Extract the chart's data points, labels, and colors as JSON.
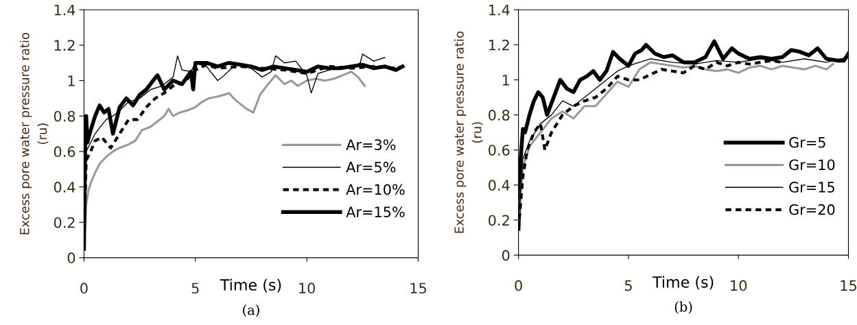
{
  "chart_data": [
    {
      "type": "line",
      "xlabel": "Time (s)",
      "ylabel": "Excess pore water pressure ratio\n(ru)",
      "annotations": [
        "(a)"
      ],
      "xlim": [
        0,
        15
      ],
      "xticks": [
        0,
        5,
        10,
        15
      ],
      "ylim": [
        0,
        1.4
      ],
      "yticks": [
        0,
        0.2,
        0.4,
        0.6,
        0.8,
        1,
        1.2,
        1.4
      ],
      "grid": false,
      "legend": "bottom right",
      "marker": "none",
      "series": [
        {
          "name": "Ar=3%",
          "color": "#999999",
          "line_style": "solid",
          "x": [
            0,
            0.05,
            0.1,
            0.2,
            0.3,
            0.5,
            0.7,
            1,
            1.3,
            1.6,
            2,
            2.3,
            2.6,
            3,
            3.3,
            3.6,
            3.8,
            4.0,
            4.3,
            4.6,
            5,
            5.3,
            5.6,
            6,
            6.3,
            6.5,
            6.8,
            7,
            7.3,
            7.6,
            7.9,
            8.2,
            8.6,
            9,
            9.3,
            9.6,
            10,
            10.4,
            10.8,
            11.2,
            11.6,
            12,
            12.3,
            12.6
          ],
          "values": [
            0.05,
            0.2,
            0.3,
            0.38,
            0.42,
            0.48,
            0.53,
            0.57,
            0.6,
            0.62,
            0.64,
            0.66,
            0.72,
            0.74,
            0.77,
            0.8,
            0.84,
            0.8,
            0.82,
            0.83,
            0.85,
            0.88,
            0.9,
            0.91,
            0.92,
            0.93,
            0.89,
            0.87,
            0.84,
            0.82,
            0.92,
            0.97,
            1.03,
            0.98,
            1.0,
            0.97,
            1.0,
            1.01,
            1.0,
            1.01,
            1.03,
            1.05,
            1.02,
            0.97
          ]
        },
        {
          "name": "Ar=5%",
          "color": "#000000",
          "line_style": "solid",
          "x": [
            0,
            0.05,
            0.1,
            0.3,
            0.5,
            0.8,
            1,
            1.3,
            1.6,
            2,
            2.5,
            3,
            3.5,
            4,
            4.2,
            4.4,
            4.8,
            5,
            5.5,
            6,
            6.3,
            6.8,
            7.5,
            8,
            8.4,
            8.6,
            9,
            9.5,
            10,
            10.2,
            10.5,
            11,
            11.5,
            12,
            12.4,
            12.5,
            13,
            13.5
          ],
          "values": [
            0.1,
            0.5,
            0.6,
            0.65,
            0.7,
            0.75,
            0.78,
            0.8,
            0.83,
            0.88,
            0.9,
            0.95,
            0.97,
            1.02,
            1.14,
            1.06,
            1.05,
            1.1,
            1.08,
            1.0,
            1.03,
            1.09,
            1.07,
            1.02,
            1.05,
            1.14,
            1.1,
            1.11,
            1.03,
            0.93,
            1.04,
            1.06,
            1.08,
            1.07,
            1.1,
            1.15,
            1.11,
            1.13
          ]
        },
        {
          "name": "Ar=10%",
          "color": "#000000",
          "line_style": "dashed",
          "x": [
            0,
            0.1,
            0.3,
            0.5,
            0.8,
            1.2,
            1.6,
            2,
            2.4,
            2.8,
            3.2,
            3.6,
            4,
            4.5,
            5,
            5.5,
            6,
            7,
            8,
            9,
            10,
            11,
            12,
            13,
            14,
            14.3
          ],
          "values": [
            0.1,
            0.55,
            0.6,
            0.66,
            0.68,
            0.62,
            0.7,
            0.78,
            0.78,
            0.85,
            0.9,
            0.93,
            0.97,
            0.99,
            1.06,
            1.09,
            1.07,
            1.08,
            1.07,
            1.06,
            1.04,
            1.08,
            1.07,
            1.08,
            1.07,
            1.08
          ]
        },
        {
          "name": "Ar=15%",
          "color": "#000000",
          "line_style": "solid",
          "x": [
            0,
            0.05,
            0.1,
            0.15,
            0.3,
            0.5,
            0.7,
            0.9,
            1.1,
            1.3,
            1.6,
            1.9,
            2.2,
            2.5,
            2.8,
            3.1,
            3.3,
            3.6,
            4,
            4.4,
            4.8,
            4.9,
            5,
            5.5,
            6,
            6.5,
            7,
            7.5,
            8,
            8.5,
            9,
            9.5,
            10,
            10.5,
            11,
            11.5,
            12,
            12.5,
            13,
            13.5,
            14,
            14.3
          ],
          "values": [
            0.05,
            0.6,
            0.8,
            0.65,
            0.72,
            0.8,
            0.86,
            0.82,
            0.84,
            0.7,
            0.85,
            0.9,
            0.86,
            0.92,
            0.95,
            1.0,
            1.03,
            0.95,
            1.0,
            0.98,
            1.05,
            0.95,
            1.1,
            1.1,
            1.08,
            1.1,
            1.09,
            1.08,
            1.06,
            1.08,
            1.07,
            1.06,
            1.05,
            1.08,
            1.07,
            1.07,
            1.08,
            1.09,
            1.07,
            1.08,
            1.06,
            1.08
          ]
        }
      ]
    },
    {
      "type": "line",
      "xlabel": "Time (s)",
      "ylabel": "Excess pore water pressure ratio\n(ru)",
      "annotations": [
        "(b)"
      ],
      "xlim": [
        0,
        15
      ],
      "xticks": [
        0,
        5,
        10,
        15
      ],
      "ylim": [
        0,
        1.4
      ],
      "yticks": [
        0,
        0.2,
        0.4,
        0.6,
        0.8,
        1,
        1.2,
        1.4
      ],
      "grid": false,
      "legend": "bottom right",
      "marker": "none",
      "series": [
        {
          "name": "Gr=5",
          "color": "#000000",
          "line_style": "solid",
          "x": [
            0,
            0.1,
            0.2,
            0.3,
            0.5,
            0.7,
            0.9,
            1.1,
            1.3,
            1.6,
            1.9,
            2.2,
            2.5,
            2.8,
            3.1,
            3.4,
            3.7,
            4,
            4.3,
            4.6,
            5,
            5.3,
            5.6,
            5.8,
            6.2,
            6.6,
            7,
            7.5,
            8,
            8.5,
            8.9,
            9.3,
            9.7,
            10,
            10.5,
            11,
            11.5,
            12,
            12.4,
            12.8,
            13.2,
            13.6,
            14,
            14.5,
            14.8,
            15
          ],
          "values": [
            0.15,
            0.55,
            0.72,
            0.7,
            0.8,
            0.88,
            0.93,
            0.9,
            0.8,
            0.9,
            1.0,
            0.95,
            0.93,
            1.0,
            1.02,
            1.05,
            1.0,
            1.05,
            1.16,
            1.12,
            1.08,
            1.15,
            1.17,
            1.2,
            1.15,
            1.13,
            1.14,
            1.1,
            1.1,
            1.13,
            1.22,
            1.12,
            1.18,
            1.15,
            1.12,
            1.13,
            1.12,
            1.13,
            1.17,
            1.16,
            1.14,
            1.18,
            1.12,
            1.11,
            1.11,
            1.15
          ]
        },
        {
          "name": "Gr=10",
          "color": "#999999",
          "line_style": "solid",
          "x": [
            0,
            0.2,
            0.5,
            1,
            1.5,
            2,
            2.5,
            3,
            3.5,
            4,
            4.5,
            5,
            5.5,
            6,
            6.5,
            7,
            7.5,
            8,
            8.5,
            9,
            9.5,
            10,
            10.5,
            11,
            11.5,
            12,
            12.5,
            13,
            13.5,
            14,
            14.3
          ],
          "values": [
            0.2,
            0.5,
            0.62,
            0.7,
            0.78,
            0.82,
            0.78,
            0.85,
            0.85,
            0.92,
            0.99,
            0.96,
            1.06,
            1.1,
            1.09,
            1.08,
            1.07,
            1.08,
            1.06,
            1.05,
            1.06,
            1.04,
            1.07,
            1.08,
            1.06,
            1.08,
            1.07,
            1.06,
            1.08,
            1.06,
            1.09
          ]
        },
        {
          "name": "Gr=15",
          "color": "#000000",
          "line_style": "solid",
          "x": [
            0,
            0.2,
            0.5,
            1,
            1.5,
            2,
            2.5,
            3,
            3.5,
            4,
            4.5,
            5,
            5.5,
            6,
            7,
            8,
            9,
            10,
            11,
            12,
            13,
            14,
            15
          ],
          "values": [
            0.2,
            0.55,
            0.65,
            0.75,
            0.8,
            0.88,
            0.85,
            0.9,
            0.95,
            1.0,
            1.05,
            1.08,
            1.1,
            1.12,
            1.1,
            1.09,
            1.11,
            1.1,
            1.12,
            1.1,
            1.12,
            1.1,
            1.13
          ]
        },
        {
          "name": "Gr=20",
          "color": "#000000",
          "line_style": "dashed",
          "x": [
            0,
            0.2,
            0.4,
            0.7,
            1,
            1.2,
            1.5,
            2,
            2.5,
            3,
            3.5,
            4,
            4.5,
            5,
            5.5,
            6,
            6.5,
            7,
            7.5,
            8,
            8.5,
            9,
            9.5,
            10,
            10.5,
            11,
            11.5,
            12
          ],
          "values": [
            0.15,
            0.45,
            0.6,
            0.7,
            0.75,
            0.6,
            0.7,
            0.8,
            0.85,
            0.88,
            0.9,
            0.95,
            1.02,
            1.0,
            1.0,
            1.03,
            1.06,
            1.05,
            1.04,
            1.08,
            1.06,
            1.1,
            1.08,
            1.1,
            1.09,
            1.1,
            1.11,
            1.1
          ]
        }
      ]
    }
  ]
}
